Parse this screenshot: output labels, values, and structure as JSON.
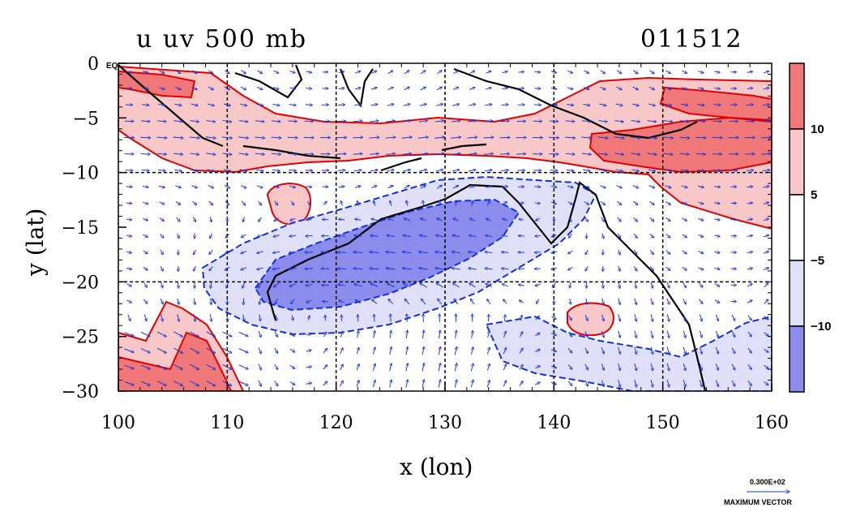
{
  "chart_data": {
    "type": "heatmap",
    "title_left": "u uv 500 mb",
    "title_right": "011512",
    "xlabel": "x (lon)",
    "ylabel": "y (lat)",
    "xlim": [
      100,
      160
    ],
    "ylim": [
      -30,
      0
    ],
    "x_ticks": [
      "100",
      "110",
      "120",
      "130",
      "140",
      "150",
      "160"
    ],
    "y_ticks": [
      "0",
      "−5",
      "−10",
      "−15",
      "−20",
      "−25",
      "−30"
    ],
    "y_tick_values": [
      0,
      -5,
      -10,
      -15,
      -20,
      -25,
      -30
    ],
    "x_tick_values": [
      100,
      110,
      120,
      130,
      140,
      150,
      160
    ],
    "corner_label": "EQ",
    "grid": true,
    "grid_lines_x": [
      110,
      120,
      130,
      140,
      150
    ],
    "grid_lines_y": [
      -10,
      -20
    ],
    "colorbar": {
      "labels": [
        "10",
        "5",
        "−5",
        "−10"
      ],
      "levels": [
        10,
        5,
        -5,
        -10
      ],
      "colors": [
        "#f07878",
        "#f8c8c8",
        "#ffffff",
        "#e0e0f8",
        "#8c8cec"
      ]
    },
    "colors": {
      "positive_line": "#e00000",
      "negative_line": "#1030e0",
      "vector": "#1838d8",
      "coast": "#000000"
    },
    "regions": [
      {
        "sign": "positive",
        "level": 5,
        "note": "easterly-to-westerly band along 5S-10S across maritime continent"
      },
      {
        "sign": "positive",
        "level": 10,
        "note": "strong westerlies near 150E-160E 5S-10S"
      },
      {
        "sign": "negative",
        "level": -5,
        "note": "easterlies over northern Australia"
      },
      {
        "sign": "negative",
        "level": -10,
        "note": "easterly core 113E-133E 14S-22S"
      },
      {
        "sign": "positive",
        "level": 10,
        "note": "westerlies SW corner 100E-112E 25S-30S"
      }
    ],
    "max_vector": {
      "value": "0.300E+02",
      "label": "MAXIMUM VECTOR"
    }
  }
}
